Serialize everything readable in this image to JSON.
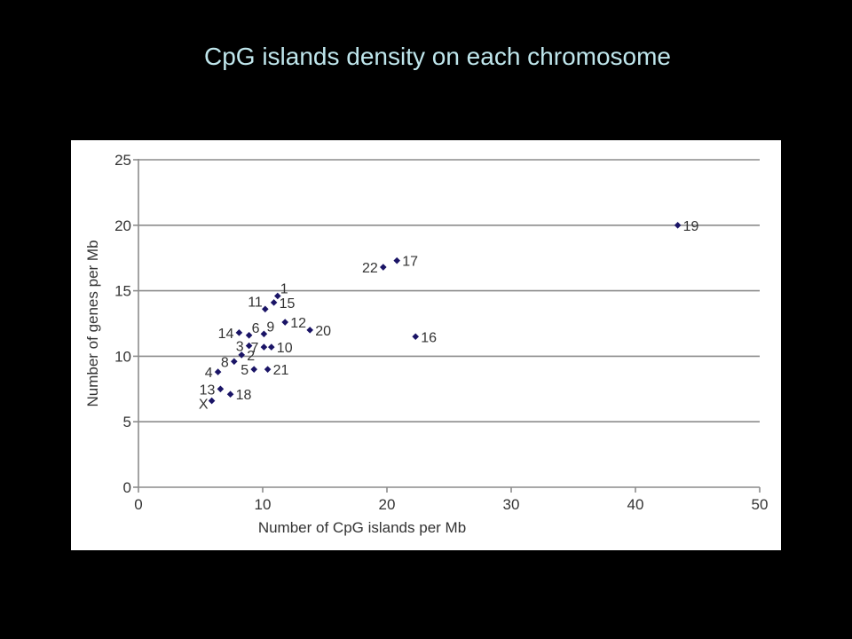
{
  "slide": {
    "title": "CpG islands density on each chromosome"
  },
  "chart_data": {
    "type": "scatter",
    "xlabel": "Number of CpG islands per Mb",
    "ylabel": "Number of genes per Mb",
    "xlim": [
      0,
      50
    ],
    "ylim": [
      0,
      25
    ],
    "xticks": [
      0,
      10,
      20,
      30,
      40,
      50
    ],
    "yticks": [
      0,
      5,
      10,
      15,
      20,
      25
    ],
    "grid": "horizontal",
    "marker_color": "#1a1466",
    "points": [
      {
        "label": "1",
        "x": 11.2,
        "y": 14.6,
        "label_pos": "above-right"
      },
      {
        "label": "2",
        "x": 8.3,
        "y": 10.1,
        "label_pos": "right"
      },
      {
        "label": "3",
        "x": 8.9,
        "y": 10.8,
        "label_pos": "left"
      },
      {
        "label": "4",
        "x": 6.4,
        "y": 8.8,
        "label_pos": "left"
      },
      {
        "label": "5",
        "x": 9.3,
        "y": 9.0,
        "label_pos": "left"
      },
      {
        "label": "6",
        "x": 8.9,
        "y": 11.6,
        "label_pos": "above-right"
      },
      {
        "label": "7",
        "x": 10.1,
        "y": 10.7,
        "label_pos": "left"
      },
      {
        "label": "8",
        "x": 7.7,
        "y": 9.6,
        "label_pos": "left"
      },
      {
        "label": "9",
        "x": 10.1,
        "y": 11.7,
        "label_pos": "above-right"
      },
      {
        "label": "10",
        "x": 10.7,
        "y": 10.7,
        "label_pos": "right"
      },
      {
        "label": "11",
        "x": 10.2,
        "y": 13.6,
        "label_pos": "above-left"
      },
      {
        "label": "12",
        "x": 11.8,
        "y": 12.6,
        "label_pos": "right"
      },
      {
        "label": "13",
        "x": 6.6,
        "y": 7.5,
        "label_pos": "left"
      },
      {
        "label": "14",
        "x": 8.1,
        "y": 11.8,
        "label_pos": "left"
      },
      {
        "label": "15",
        "x": 10.9,
        "y": 14.1,
        "label_pos": "right"
      },
      {
        "label": "16",
        "x": 22.3,
        "y": 11.5,
        "label_pos": "right"
      },
      {
        "label": "17",
        "x": 20.8,
        "y": 17.3,
        "label_pos": "right"
      },
      {
        "label": "18",
        "x": 7.4,
        "y": 7.1,
        "label_pos": "right"
      },
      {
        "label": "19",
        "x": 43.4,
        "y": 20.0,
        "label_pos": "right"
      },
      {
        "label": "20",
        "x": 13.8,
        "y": 12.0,
        "label_pos": "right"
      },
      {
        "label": "21",
        "x": 10.4,
        "y": 9.0,
        "label_pos": "right"
      },
      {
        "label": "22",
        "x": 19.7,
        "y": 16.8,
        "label_pos": "left"
      },
      {
        "label": "X",
        "x": 5.9,
        "y": 6.6,
        "label_pos": "below-left"
      }
    ]
  }
}
